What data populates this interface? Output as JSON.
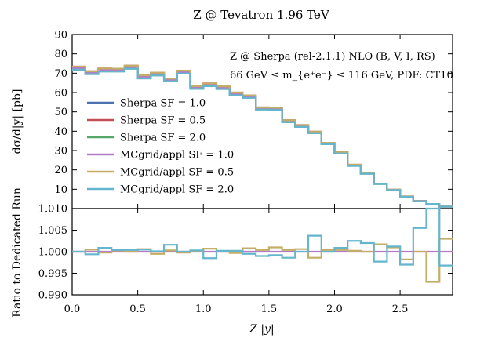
{
  "chart_data": {
    "type": "line",
    "title": "Z @ Tevatron 1.96 TeV",
    "annotations": [
      "Z @ Sherpa (rel-2.1.1) NLO (B, V, I, RS)",
      "66 GeV ≤ m_{e⁺e⁻} ≤ 116 GeV, PDF: CT10"
    ],
    "xlabel": "Z |y|",
    "xlim": [
      0.0,
      2.9
    ],
    "x_ticks": [
      "0.0",
      "0.5",
      "1.0",
      "1.5",
      "2.0",
      "2.5"
    ],
    "bin_edges": [
      0.0,
      0.1,
      0.2,
      0.3,
      0.4,
      0.5,
      0.6,
      0.7,
      0.8,
      0.9,
      1.0,
      1.1,
      1.2,
      1.3,
      1.4,
      1.5,
      1.6,
      1.7,
      1.8,
      1.9,
      2.0,
      2.1,
      2.2,
      2.3,
      2.4,
      2.5,
      2.6,
      2.7,
      2.8,
      2.9
    ],
    "grid": false,
    "legend_position": "center-left",
    "top_panel": {
      "ylabel": "dσ/d|y| [pb]",
      "ylim": [
        0,
        90
      ],
      "y_ticks": [
        "10",
        "20",
        "30",
        "40",
        "50",
        "60",
        "70",
        "80",
        "90"
      ],
      "series": [
        {
          "name": "Sherpa SF = 1.0",
          "color": "#4c72b0",
          "values": [
            72.6,
            70.3,
            71.6,
            71.6,
            73.1,
            68.1,
            69.6,
            66.5,
            70.6,
            62.6,
            64.0,
            62.5,
            59.3,
            57.9,
            51.8,
            51.7,
            45.2,
            42.7,
            39.4,
            33.7,
            28.8,
            22.4,
            18.2,
            12.8,
            9.7,
            6.2,
            3.9,
            2.4,
            1.0
          ]
        },
        {
          "name": "Sherpa SF = 0.5",
          "color": "#c44e52",
          "values": [
            73.4,
            71.0,
            72.4,
            72.3,
            73.9,
            68.9,
            70.3,
            67.2,
            71.3,
            63.3,
            64.7,
            63.2,
            60.0,
            58.5,
            52.3,
            52.2,
            45.7,
            43.2,
            39.8,
            34.0,
            29.1,
            22.7,
            18.4,
            12.9,
            9.8,
            6.3,
            3.9,
            2.4,
            1.0
          ]
        },
        {
          "name": "Sherpa SF = 2.0",
          "color": "#55a868",
          "values": [
            71.8,
            69.5,
            70.9,
            70.9,
            72.3,
            67.3,
            68.8,
            65.8,
            69.8,
            61.9,
            63.3,
            61.8,
            58.6,
            57.2,
            51.2,
            51.1,
            44.7,
            42.2,
            39.0,
            33.3,
            28.5,
            22.1,
            18.0,
            12.7,
            9.6,
            6.1,
            3.8,
            2.4,
            1.0
          ]
        },
        {
          "name": "MCgrid/appl SF = 1.0",
          "color": "#b47cc7",
          "values": [
            72.6,
            70.3,
            71.6,
            71.6,
            73.1,
            68.1,
            69.6,
            66.5,
            70.6,
            62.6,
            64.0,
            62.5,
            59.3,
            57.9,
            51.8,
            51.7,
            45.2,
            42.7,
            39.4,
            33.7,
            28.8,
            22.4,
            18.2,
            12.8,
            9.7,
            6.2,
            3.9,
            2.4,
            1.0
          ]
        },
        {
          "name": "MCgrid/appl SF = 0.5",
          "color": "#c4ad66",
          "values": [
            73.4,
            71.0,
            72.4,
            72.3,
            73.9,
            68.9,
            70.3,
            67.2,
            71.3,
            63.3,
            64.7,
            63.2,
            60.0,
            58.5,
            52.3,
            52.2,
            45.7,
            43.2,
            39.8,
            34.0,
            29.1,
            22.7,
            18.4,
            12.9,
            9.8,
            6.3,
            3.9,
            2.4,
            1.0
          ]
        },
        {
          "name": "MCgrid/appl SF = 2.0",
          "color": "#64b5cd",
          "values": [
            71.8,
            69.5,
            70.9,
            70.9,
            72.3,
            67.3,
            68.8,
            65.8,
            69.8,
            61.9,
            63.3,
            61.8,
            58.6,
            57.2,
            51.2,
            51.1,
            44.7,
            42.2,
            39.0,
            33.3,
            28.5,
            22.1,
            18.0,
            12.7,
            9.6,
            6.1,
            3.8,
            2.4,
            1.0
          ]
        }
      ]
    },
    "bottom_panel": {
      "ylabel": "Ratio to Dedicated Run",
      "ylim": [
        0.99,
        1.01
      ],
      "y_ticks": [
        "0.990",
        "0.995",
        "1.000",
        "1.005",
        "1.010"
      ],
      "series": [
        {
          "name": "MCgrid/appl SF = 1.0",
          "color": "#b47cc7",
          "values": [
            1.0,
            1.0,
            1.0,
            1.0,
            1.0,
            1.0,
            1.0,
            1.0,
            1.0,
            1.0,
            1.0,
            1.0,
            1.0,
            1.0,
            1.0,
            1.0,
            1.0,
            1.0,
            1.0,
            1.0,
            1.0,
            1.0,
            1.0,
            1.0,
            1.0,
            1.0,
            1.0,
            1.0,
            1.0
          ]
        },
        {
          "name": "MCgrid/appl SF = 0.5",
          "color": "#c4ad66",
          "values": [
            1.0,
            1.0005,
            0.9998,
            1.0003,
            1.0,
            1.0006,
            0.9995,
            1.0003,
            0.9998,
            1.0002,
            1.0007,
            1.0,
            0.9997,
            1.0008,
            1.0004,
            1.001,
            1.0004,
            1.0006,
            0.9986,
            1.0004,
            1.0004,
            1.0002,
            1.0,
            1.0017,
            1.001,
            0.9982,
            1.0,
            0.993,
            1.003
          ]
        },
        {
          "name": "MCgrid/appl SF = 2.0",
          "color": "#64b5cd",
          "values": [
            1.0,
            0.9994,
            1.0009,
            1.0004,
            1.0004,
            1.0005,
            1.0001,
            1.0016,
            1.0,
            1.0003,
            0.9985,
            1.0002,
            1.0002,
            0.9995,
            0.999,
            0.9992,
            0.9986,
            1.0,
            1.0037,
            1.0,
            1.0009,
            1.0025,
            1.002,
            0.9977,
            1.0012,
            0.997,
            1.0055,
            1.0105,
            0.9968
          ]
        }
      ]
    }
  }
}
